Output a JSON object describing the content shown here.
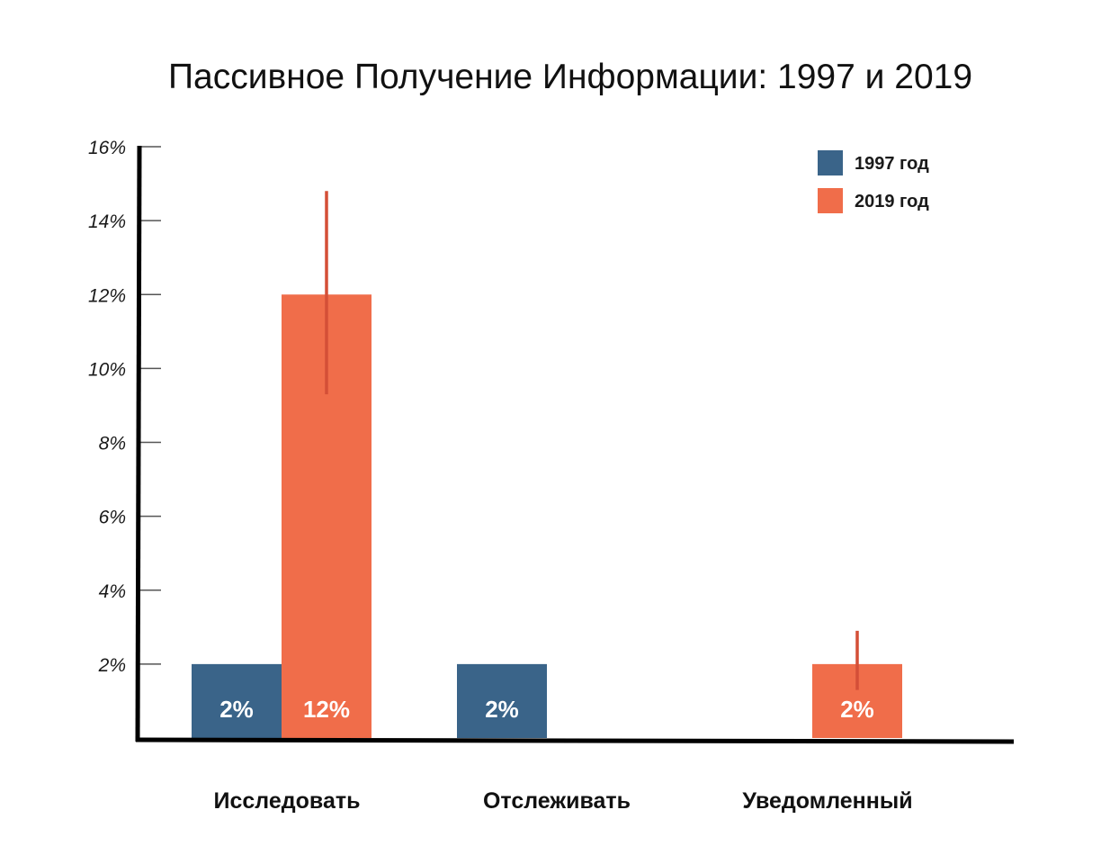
{
  "chart_data": {
    "type": "bar",
    "title": "Пассивное Получение Информации: 1997 и 2019",
    "xlabel": "",
    "ylabel": "",
    "ylim": [
      0,
      16
    ],
    "y_ticks": [
      "2%",
      "4%",
      "6%",
      "8%",
      "10%",
      "12%",
      "14%",
      "16%"
    ],
    "y_tick_values": [
      2,
      4,
      6,
      8,
      10,
      12,
      14,
      16
    ],
    "categories": [
      "Исследовать",
      "Отслеживать",
      "Уведомленный"
    ],
    "series": [
      {
        "name": "1997 год",
        "color": "#3a6489",
        "values": [
          2,
          2,
          null
        ],
        "labels": [
          "2%",
          "2%",
          ""
        ],
        "error_bars": [
          null,
          null,
          null
        ]
      },
      {
        "name": "2019 год",
        "color": "#f06d4a",
        "values": [
          12,
          null,
          2
        ],
        "labels": [
          "12%",
          "",
          "2%"
        ],
        "error_bars": [
          [
            9.3,
            14.8
          ],
          null,
          [
            1.3,
            2.9
          ]
        ]
      }
    ],
    "error_bar_color": "#d44f37",
    "legend_position": "top-right",
    "grid": false
  }
}
